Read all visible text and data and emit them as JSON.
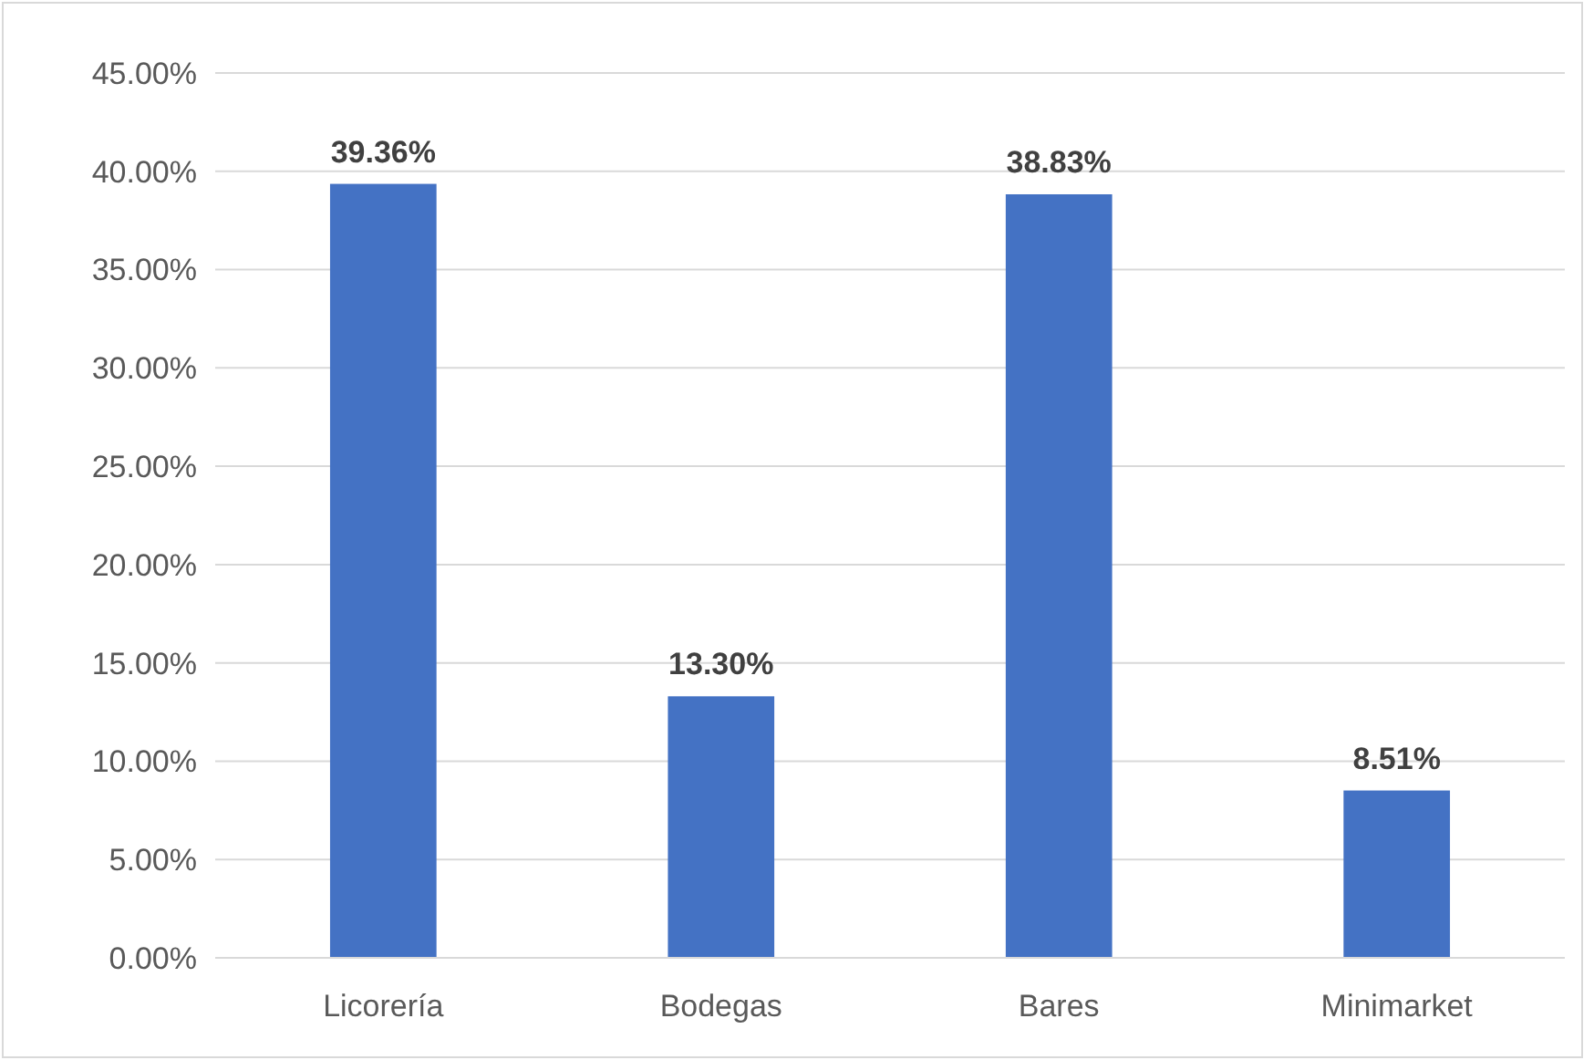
{
  "chart_data": {
    "type": "bar",
    "categories": [
      "Licorería",
      "Bodegas",
      "Bares",
      "Minimarket"
    ],
    "values": [
      39.36,
      13.3,
      38.83,
      8.51
    ],
    "color": "#4472c4",
    "value_labels": [
      "39.36%",
      "13.30%",
      "38.83%",
      "8.51%"
    ],
    "ylim": [
      0,
      45
    ],
    "yticks": [
      {
        "value": 0,
        "label": "0.00%"
      },
      {
        "value": 5,
        "label": "5.00%"
      },
      {
        "value": 10,
        "label": "10.00%"
      },
      {
        "value": 15,
        "label": "15.00%"
      },
      {
        "value": 20,
        "label": "20.00%"
      },
      {
        "value": 25,
        "label": "25.00%"
      },
      {
        "value": 30,
        "label": "30.00%"
      },
      {
        "value": 35,
        "label": "35.00%"
      },
      {
        "value": 40,
        "label": "40.00%"
      },
      {
        "value": 45,
        "label": "45.00%"
      }
    ],
    "grid": "y"
  }
}
